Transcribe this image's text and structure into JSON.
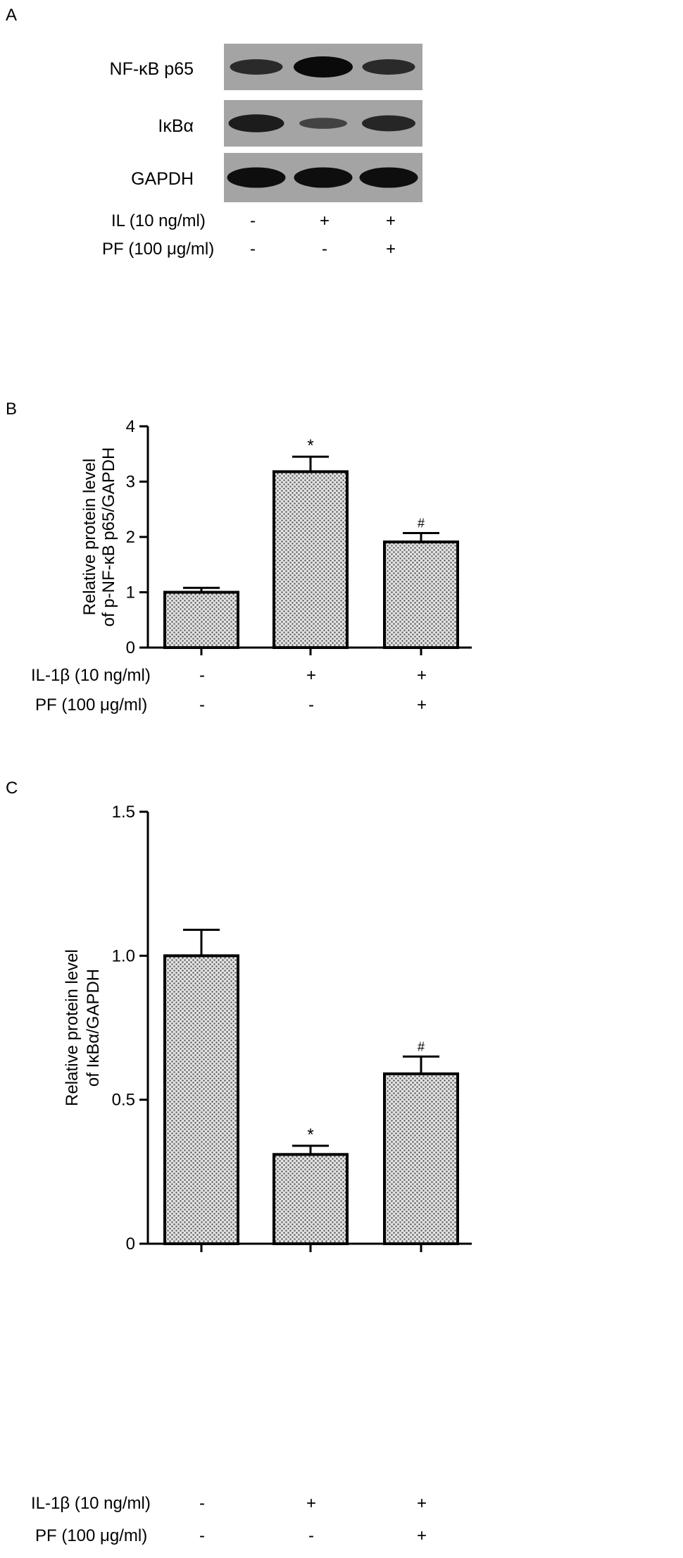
{
  "panel_a": {
    "letter": "A",
    "blots": [
      {
        "label": "NF-κB p65",
        "bands": [
          0.55,
          1.0,
          0.55
        ]
      },
      {
        "label": "IκBα",
        "bands": [
          0.75,
          0.2,
          0.6
        ]
      },
      {
        "label": "GAPDH",
        "bands": [
          0.95,
          0.95,
          0.95
        ]
      }
    ],
    "conditions": [
      {
        "label": "IL (10 ng/ml)",
        "signs": [
          "-",
          "+",
          "+"
        ]
      },
      {
        "label": "PF (100 μg/ml)",
        "signs": [
          "-",
          "-",
          "+"
        ]
      }
    ]
  },
  "chart_data": [
    {
      "type": "bar",
      "panel": "B",
      "ylabel_line1": "Relative protein level",
      "ylabel_line2": "of p-NF-κB p65/GAPDH",
      "ylim": [
        0,
        4
      ],
      "yticks": [
        "0",
        "1",
        "2",
        "3",
        "4"
      ],
      "values": [
        1.0,
        3.18,
        1.91
      ],
      "errors": [
        0.08,
        0.27,
        0.16
      ],
      "annotations": [
        "",
        "*",
        "#"
      ],
      "conditions": [
        {
          "label": "IL-1β (10 ng/ml)",
          "signs": [
            "-",
            "+",
            "+"
          ]
        },
        {
          "label": "PF (100 μg/ml)",
          "signs": [
            "-",
            "-",
            "+"
          ]
        }
      ]
    },
    {
      "type": "bar",
      "panel": "C",
      "ylabel_line1": "Relative protein level",
      "ylabel_line2": "of IκBα/GAPDH",
      "ylim": [
        0,
        1.5
      ],
      "yticks": [
        "0",
        "0.5",
        "1.0",
        "1.5"
      ],
      "values": [
        1.0,
        0.31,
        0.59
      ],
      "errors": [
        0.09,
        0.03,
        0.06
      ],
      "annotations": [
        "",
        "*",
        "#"
      ],
      "conditions": [
        {
          "label": "IL-1β (10 ng/ml)",
          "signs": [
            "-",
            "+",
            "+"
          ]
        },
        {
          "label": "PF (100 μg/ml)",
          "signs": [
            "-",
            "-",
            "+"
          ]
        }
      ]
    }
  ]
}
